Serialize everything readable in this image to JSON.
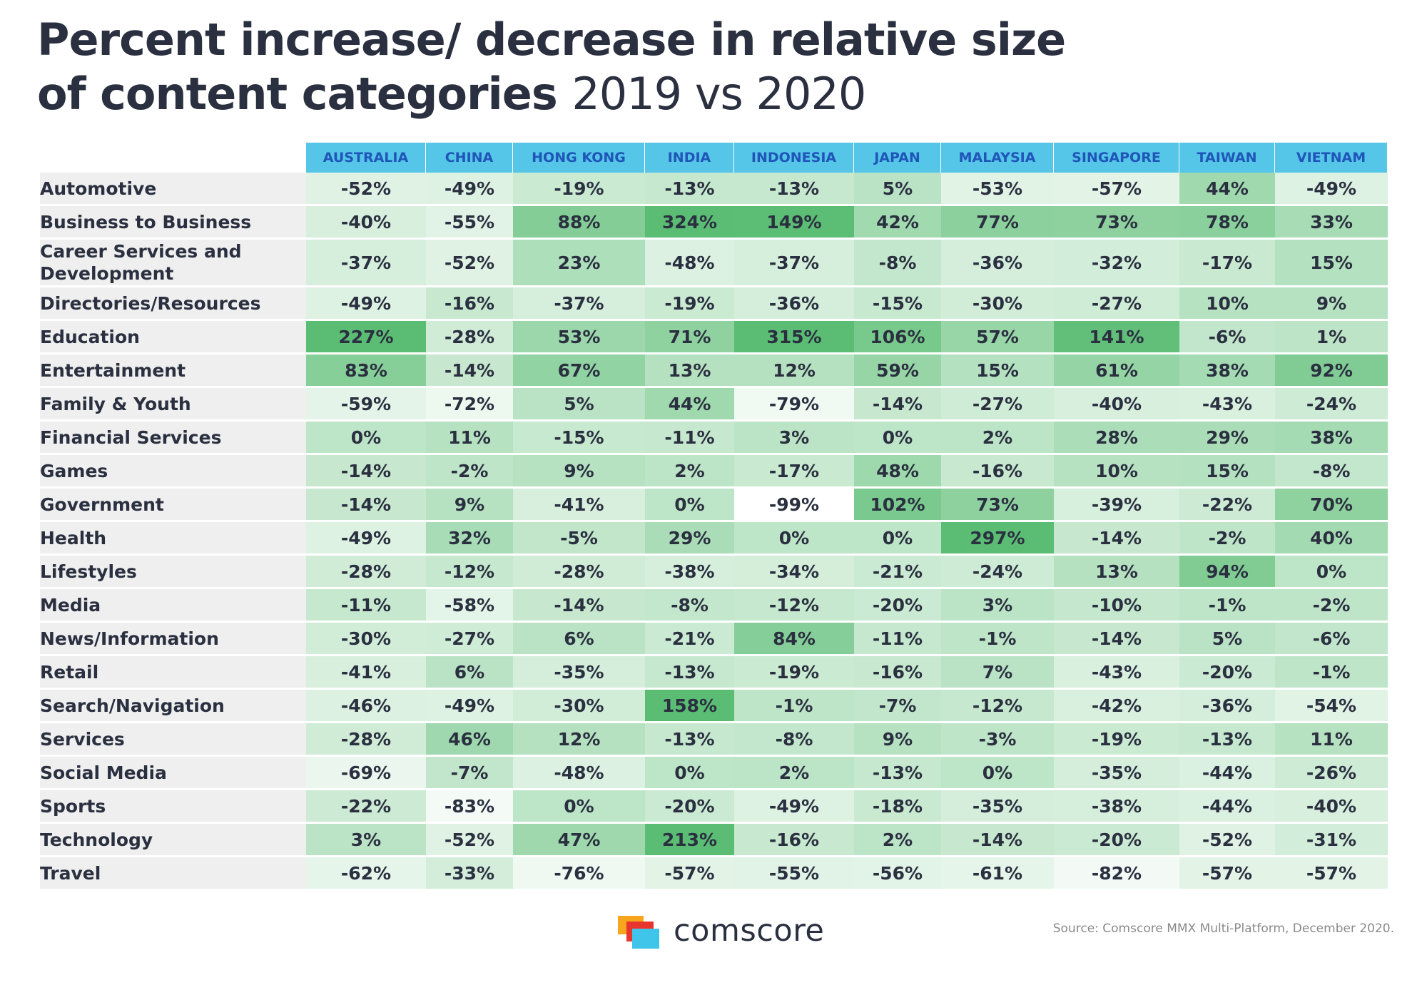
{
  "title": {
    "line1": "Percent increase/ decrease in relative size",
    "line2_bold": "of content categories",
    "line2_light": "2019 vs 2020"
  },
  "colors": {
    "header_bg": "#55c5e8",
    "header_text": "#1f56b8",
    "category_bg": "#efefef",
    "scale_low": "#ffffff",
    "scale_high": "#5bbd74"
  },
  "chart_data": {
    "type": "heatmap",
    "columns": [
      "AUSTRALIA",
      "CHINA",
      "HONG KONG",
      "INDIA",
      "INDONESIA",
      "JAPAN",
      "MALAYSIA",
      "SINGAPORE",
      "TAIWAN",
      "VIETNAM"
    ],
    "rows": [
      {
        "category": "Automotive",
        "values": [
          -52,
          -49,
          -19,
          -13,
          -13,
          5,
          -53,
          -57,
          44,
          -49
        ]
      },
      {
        "category": "Business to Business",
        "values": [
          -40,
          -55,
          88,
          324,
          149,
          42,
          77,
          73,
          78,
          33
        ]
      },
      {
        "category": "Career Services and Development",
        "values": [
          -37,
          -52,
          23,
          -48,
          -37,
          -8,
          -36,
          -32,
          -17,
          15
        ]
      },
      {
        "category": "Directories/Resources",
        "values": [
          -49,
          -16,
          -37,
          -19,
          -36,
          -15,
          -30,
          -27,
          10,
          9
        ]
      },
      {
        "category": "Education",
        "values": [
          227,
          -28,
          53,
          71,
          315,
          106,
          57,
          141,
          -6,
          1
        ]
      },
      {
        "category": "Entertainment",
        "values": [
          83,
          -14,
          67,
          13,
          12,
          59,
          15,
          61,
          38,
          92
        ]
      },
      {
        "category": "Family & Youth",
        "values": [
          -59,
          -72,
          5,
          44,
          -79,
          -14,
          -27,
          -40,
          -43,
          -24
        ]
      },
      {
        "category": "Financial Services",
        "values": [
          0,
          11,
          -15,
          -11,
          3,
          0,
          2,
          28,
          29,
          38
        ]
      },
      {
        "category": "Games",
        "values": [
          -14,
          -2,
          9,
          2,
          -17,
          48,
          -16,
          10,
          15,
          -8
        ]
      },
      {
        "category": "Government",
        "values": [
          -14,
          9,
          -41,
          0,
          -99,
          102,
          73,
          -39,
          -22,
          70
        ]
      },
      {
        "category": "Health",
        "values": [
          -49,
          32,
          -5,
          29,
          0,
          0,
          297,
          -14,
          -2,
          40
        ]
      },
      {
        "category": "Lifestyles",
        "values": [
          -28,
          -12,
          -28,
          -38,
          -34,
          -21,
          -24,
          13,
          94,
          0
        ]
      },
      {
        "category": "Media",
        "values": [
          -11,
          -58,
          -14,
          -8,
          -12,
          -20,
          3,
          -10,
          -1,
          -2
        ]
      },
      {
        "category": "News/Information",
        "values": [
          -30,
          -27,
          6,
          -21,
          84,
          -11,
          -1,
          -14,
          5,
          -6
        ]
      },
      {
        "category": "Retail",
        "values": [
          -41,
          6,
          -35,
          -13,
          -19,
          -16,
          7,
          -43,
          -20,
          -1
        ]
      },
      {
        "category": "Search/Navigation",
        "values": [
          -46,
          -49,
          -30,
          158,
          -1,
          -7,
          -12,
          -42,
          -36,
          -54
        ]
      },
      {
        "category": "Services",
        "values": [
          -28,
          46,
          12,
          -13,
          -8,
          9,
          -3,
          -19,
          -13,
          11
        ]
      },
      {
        "category": "Social Media",
        "values": [
          -69,
          -7,
          -48,
          0,
          2,
          -13,
          0,
          -35,
          -44,
          -26
        ]
      },
      {
        "category": "Sports",
        "values": [
          -22,
          -83,
          0,
          -20,
          -49,
          -18,
          -35,
          -38,
          -44,
          -40
        ]
      },
      {
        "category": "Technology",
        "values": [
          3,
          -52,
          47,
          213,
          -16,
          2,
          -14,
          -20,
          -52,
          -31
        ]
      },
      {
        "category": "Travel",
        "values": [
          -62,
          -33,
          -76,
          -57,
          -55,
          -56,
          -61,
          -82,
          -57,
          -57
        ]
      }
    ],
    "unit": "%"
  },
  "logo": {
    "name": "comscore-logo-icon",
    "text": "comscore"
  },
  "source": "Source: Comscore MMX Multi-Platform, December 2020."
}
